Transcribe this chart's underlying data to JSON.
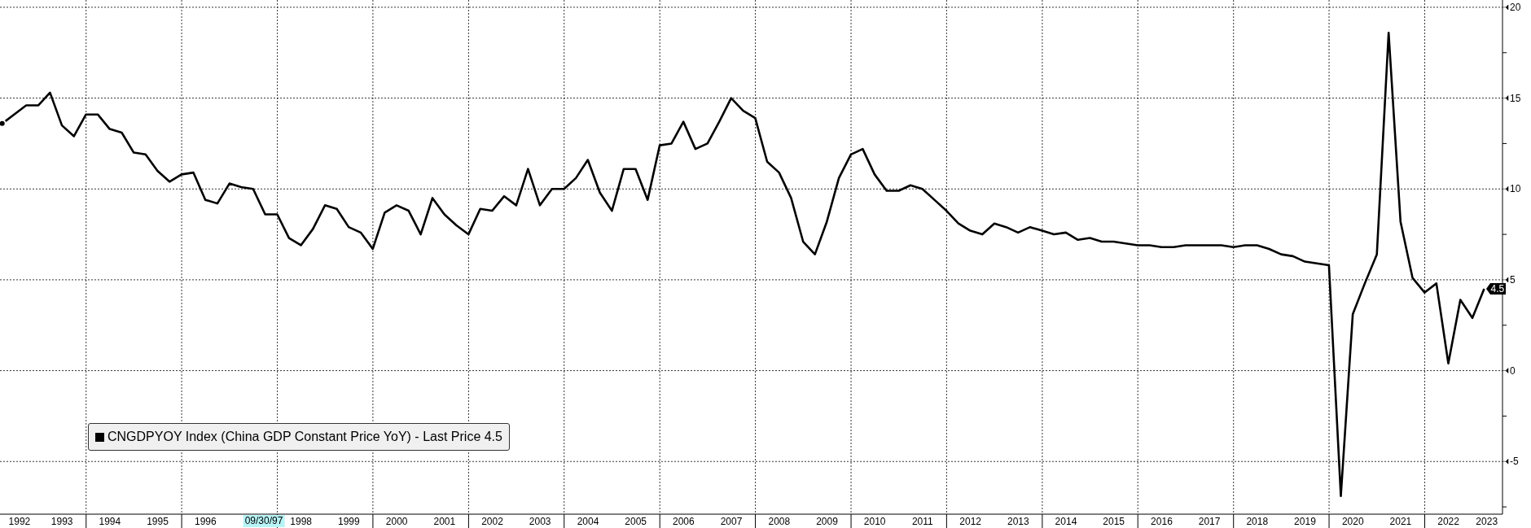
{
  "chart_data": {
    "type": "line",
    "x": [
      "1992-03-31",
      "1992-06-30",
      "1992-09-30",
      "1992-12-31",
      "1993-03-31",
      "1993-06-30",
      "1993-09-30",
      "1993-12-31",
      "1994-03-31",
      "1994-06-30",
      "1994-09-30",
      "1994-12-31",
      "1995-03-31",
      "1995-06-30",
      "1995-09-30",
      "1995-12-31",
      "1996-03-31",
      "1996-06-30",
      "1996-09-30",
      "1996-12-31",
      "1997-03-31",
      "1997-06-30",
      "1997-09-30",
      "1997-12-31",
      "1998-03-31",
      "1998-06-30",
      "1998-09-30",
      "1998-12-31",
      "1999-03-31",
      "1999-06-30",
      "1999-09-30",
      "1999-12-31",
      "2000-03-31",
      "2000-06-30",
      "2000-09-30",
      "2000-12-31",
      "2001-03-31",
      "2001-06-30",
      "2001-09-30",
      "2001-12-31",
      "2002-03-31",
      "2002-06-30",
      "2002-09-30",
      "2002-12-31",
      "2003-03-31",
      "2003-06-30",
      "2003-09-30",
      "2003-12-31",
      "2004-03-31",
      "2004-06-30",
      "2004-09-30",
      "2004-12-31",
      "2005-03-31",
      "2005-06-30",
      "2005-09-30",
      "2005-12-31",
      "2006-03-31",
      "2006-06-30",
      "2006-09-30",
      "2006-12-31",
      "2007-03-31",
      "2007-06-30",
      "2007-09-30",
      "2007-12-31",
      "2008-03-31",
      "2008-06-30",
      "2008-09-30",
      "2008-12-31",
      "2009-03-31",
      "2009-06-30",
      "2009-09-30",
      "2009-12-31",
      "2010-03-31",
      "2010-06-30",
      "2010-09-30",
      "2010-12-31",
      "2011-03-31",
      "2011-06-30",
      "2011-09-30",
      "2011-12-31",
      "2012-03-31",
      "2012-06-30",
      "2012-09-30",
      "2012-12-31",
      "2013-03-31",
      "2013-06-30",
      "2013-09-30",
      "2013-12-31",
      "2014-03-31",
      "2014-06-30",
      "2014-09-30",
      "2014-12-31",
      "2015-03-31",
      "2015-06-30",
      "2015-09-30",
      "2015-12-31",
      "2016-03-31",
      "2016-06-30",
      "2016-09-30",
      "2016-12-31",
      "2017-03-31",
      "2017-06-30",
      "2017-09-30",
      "2017-12-31",
      "2018-03-31",
      "2018-06-30",
      "2018-09-30",
      "2018-12-31",
      "2019-03-31",
      "2019-06-30",
      "2019-09-30",
      "2019-12-31",
      "2020-03-31",
      "2020-06-30",
      "2020-09-30",
      "2020-12-31",
      "2021-03-31",
      "2021-06-30",
      "2021-09-30",
      "2021-12-31",
      "2022-03-31",
      "2022-06-30",
      "2022-09-30",
      "2022-12-31",
      "2023-03-31"
    ],
    "series": [
      {
        "name": "CNGDPYOY Index (China GDP Constant Price YoY) - Last Price 4.5",
        "color": "#000000",
        "values": [
          13.6,
          14.1,
          14.6,
          14.6,
          15.3,
          13.5,
          12.9,
          14.1,
          14.1,
          13.3,
          13.1,
          12.0,
          11.9,
          11.0,
          10.4,
          10.8,
          10.9,
          9.4,
          9.2,
          10.3,
          10.1,
          10.0,
          8.6,
          8.6,
          7.3,
          6.9,
          7.8,
          9.1,
          8.9,
          7.9,
          7.6,
          6.7,
          8.7,
          9.1,
          8.8,
          7.5,
          9.5,
          8.6,
          8.0,
          7.5,
          8.9,
          8.8,
          9.6,
          9.1,
          11.1,
          9.1,
          10.0,
          10.0,
          10.6,
          11.6,
          9.8,
          8.8,
          11.1,
          11.1,
          9.4,
          12.4,
          12.5,
          13.7,
          12.2,
          12.5,
          13.7,
          15.0,
          14.3,
          13.9,
          11.5,
          10.9,
          9.5,
          7.1,
          6.4,
          8.2,
          10.6,
          11.9,
          12.2,
          10.8,
          9.9,
          9.9,
          10.2,
          10.0,
          9.4,
          8.8,
          8.1,
          7.7,
          7.5,
          8.1,
          7.9,
          7.6,
          7.9,
          7.7,
          7.5,
          7.6,
          7.2,
          7.3,
          7.1,
          7.1,
          7.0,
          6.9,
          6.9,
          6.8,
          6.8,
          6.9,
          6.9,
          6.9,
          6.9,
          6.8,
          6.9,
          6.9,
          6.7,
          6.4,
          6.3,
          6.0,
          5.9,
          5.8,
          -6.9,
          3.1,
          4.8,
          6.4,
          18.6,
          8.2,
          5.1,
          4.3,
          4.8,
          0.4,
          3.9,
          2.9,
          4.5
        ],
        "value_labels": [
          null,
          null,
          null,
          null,
          null,
          null,
          null,
          null,
          null,
          null,
          null,
          null,
          null,
          null,
          null,
          null,
          null,
          null,
          null,
          null,
          null,
          null,
          null,
          null,
          null,
          null,
          null,
          null,
          null,
          null,
          null,
          null,
          null,
          null,
          null,
          null,
          null,
          null,
          null,
          null,
          null,
          null,
          null,
          null,
          null,
          null,
          null,
          null,
          null,
          null,
          null,
          null,
          null,
          null,
          null,
          null,
          null,
          null,
          null,
          null,
          null,
          null,
          null,
          null,
          null,
          null,
          null,
          null,
          null,
          null,
          null,
          null,
          null,
          null,
          null,
          null,
          null,
          null,
          null,
          null,
          null,
          null,
          null,
          null,
          null,
          null,
          null,
          null,
          null,
          null,
          null,
          null,
          null,
          null,
          null,
          null,
          null,
          null,
          null,
          null,
          null,
          null,
          null,
          null,
          null,
          null,
          null,
          null,
          null,
          null,
          null,
          null,
          null,
          null,
          null,
          null,
          null,
          null,
          null,
          null,
          null,
          null,
          null,
          null,
          "4.5"
        ]
      }
    ],
    "xlim": [
      "1992-03-14",
      "2023-08-18"
    ],
    "xticks": [
      {
        "value": "1992-08-10",
        "label": "1992"
      },
      {
        "value": "1993-07-01",
        "label": "1993"
      },
      {
        "value": "1994-01-01",
        "label": null
      },
      {
        "value": "1994-07-01",
        "label": "1994"
      },
      {
        "value": "1995-07-01",
        "label": "1995"
      },
      {
        "value": "1996-01-01",
        "label": null
      },
      {
        "value": "1996-07-01",
        "label": "1996"
      },
      {
        "value": "1998-01-01",
        "label": null
      },
      {
        "value": "1998-07-01",
        "label": "1998"
      },
      {
        "value": "1999-07-01",
        "label": "1999"
      },
      {
        "value": "2000-01-01",
        "label": null
      },
      {
        "value": "2000-07-01",
        "label": "2000"
      },
      {
        "value": "2001-07-01",
        "label": "2001"
      },
      {
        "value": "2002-01-01",
        "label": null
      },
      {
        "value": "2002-07-01",
        "label": "2002"
      },
      {
        "value": "2003-07-01",
        "label": "2003"
      },
      {
        "value": "2004-01-01",
        "label": null
      },
      {
        "value": "2004-07-01",
        "label": "2004"
      },
      {
        "value": "2005-07-01",
        "label": "2005"
      },
      {
        "value": "2006-01-01",
        "label": null
      },
      {
        "value": "2006-07-01",
        "label": "2006"
      },
      {
        "value": "2007-07-01",
        "label": "2007"
      },
      {
        "value": "2008-01-01",
        "label": null
      },
      {
        "value": "2008-07-01",
        "label": "2008"
      },
      {
        "value": "2009-07-01",
        "label": "2009"
      },
      {
        "value": "2010-01-01",
        "label": null
      },
      {
        "value": "2010-07-01",
        "label": "2010"
      },
      {
        "value": "2011-07-01",
        "label": "2011"
      },
      {
        "value": "2012-01-01",
        "label": null
      },
      {
        "value": "2012-07-01",
        "label": "2012"
      },
      {
        "value": "2013-07-01",
        "label": "2013"
      },
      {
        "value": "2014-01-01",
        "label": null
      },
      {
        "value": "2014-07-01",
        "label": "2014"
      },
      {
        "value": "2015-07-01",
        "label": "2015"
      },
      {
        "value": "2016-01-01",
        "label": null
      },
      {
        "value": "2016-07-01",
        "label": "2016"
      },
      {
        "value": "2017-07-01",
        "label": "2017"
      },
      {
        "value": "2018-01-01",
        "label": null
      },
      {
        "value": "2018-07-01",
        "label": "2018"
      },
      {
        "value": "2019-07-01",
        "label": "2019"
      },
      {
        "value": "2020-01-01",
        "label": null
      },
      {
        "value": "2020-07-01",
        "label": "2020"
      },
      {
        "value": "2021-07-01",
        "label": "2021"
      },
      {
        "value": "2022-01-01",
        "label": null
      },
      {
        "value": "2022-07-01",
        "label": "2022"
      },
      {
        "value": "2023-04-20",
        "label": "2023"
      }
    ],
    "ylim": [
      -7.9,
      20.4
    ],
    "yticks": [
      {
        "value": -7.5,
        "label": null
      },
      -5,
      {
        "value": -2.5,
        "label": null
      },
      0,
      {
        "value": 2.5,
        "label": null
      },
      5,
      {
        "value": 7.5,
        "label": null
      },
      10,
      {
        "value": 12.5,
        "label": null
      },
      15,
      {
        "value": 17.5,
        "label": null
      },
      20
    ],
    "grid": true,
    "legend": "bottom left",
    "annotations": [
      "09/30/97"
    ]
  }
}
